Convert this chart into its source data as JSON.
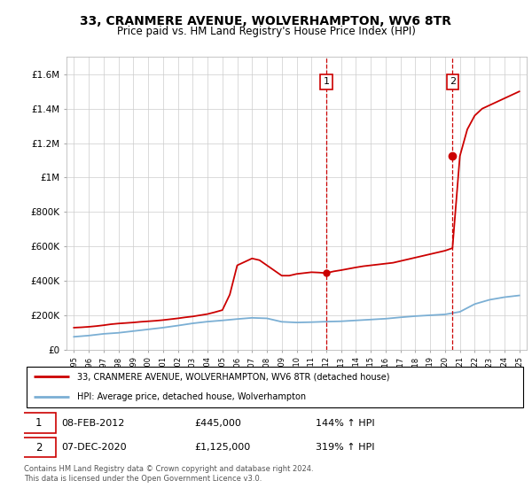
{
  "title": "33, CRANMERE AVENUE, WOLVERHAMPTON, WV6 8TR",
  "subtitle": "Price paid vs. HM Land Registry's House Price Index (HPI)",
  "red_label": "33, CRANMERE AVENUE, WOLVERHAMPTON, WV6 8TR (detached house)",
  "blue_label": "HPI: Average price, detached house, Wolverhampton",
  "sale1_date": "08-FEB-2012",
  "sale1_price": "£445,000",
  "sale1_hpi": "144% ↑ HPI",
  "sale2_date": "07-DEC-2020",
  "sale2_price": "£1,125,000",
  "sale2_hpi": "319% ↑ HPI",
  "footer": "Contains HM Land Registry data © Crown copyright and database right 2024.\nThis data is licensed under the Open Government Licence v3.0.",
  "ylim": [
    0,
    1700000
  ],
  "yticks": [
    0,
    200000,
    400000,
    600000,
    800000,
    1000000,
    1200000,
    1400000,
    1600000
  ],
  "ytick_labels": [
    "£0",
    "£200K",
    "£400K",
    "£600K",
    "£800K",
    "£1M",
    "£1.2M",
    "£1.4M",
    "£1.6M"
  ],
  "red_x": [
    1995.0,
    1995.5,
    1996.0,
    1996.5,
    1997.0,
    1997.5,
    1998.0,
    1998.5,
    1999.0,
    1999.5,
    2000.0,
    2000.5,
    2001.0,
    2001.5,
    2002.0,
    2002.5,
    2003.0,
    2003.5,
    2004.0,
    2004.5,
    2005.0,
    2005.5,
    2006.0,
    2006.5,
    2007.0,
    2007.5,
    2008.0,
    2008.5,
    2009.0,
    2009.5,
    2010.0,
    2010.5,
    2011.0,
    2011.5,
    2012.0,
    2012.5,
    2013.0,
    2013.5,
    2014.0,
    2014.5,
    2015.0,
    2015.5,
    2016.0,
    2016.5,
    2017.0,
    2017.5,
    2018.0,
    2018.5,
    2019.0,
    2019.5,
    2020.0,
    2020.5,
    2021.0,
    2021.5,
    2022.0,
    2022.5,
    2023.0,
    2023.5,
    2024.0,
    2024.5,
    2025.0
  ],
  "red_y": [
    128000,
    130000,
    133000,
    137000,
    142000,
    148000,
    152000,
    155000,
    158000,
    162000,
    165000,
    168000,
    172000,
    177000,
    182000,
    188000,
    193000,
    200000,
    207000,
    218000,
    230000,
    320000,
    490000,
    510000,
    530000,
    520000,
    490000,
    460000,
    430000,
    430000,
    440000,
    445000,
    450000,
    448000,
    445000,
    455000,
    462000,
    470000,
    478000,
    485000,
    490000,
    495000,
    500000,
    505000,
    515000,
    525000,
    535000,
    545000,
    555000,
    565000,
    575000,
    590000,
    1125000,
    1280000,
    1360000,
    1400000,
    1420000,
    1440000,
    1460000,
    1480000,
    1500000
  ],
  "blue_x": [
    1995.0,
    1996.0,
    1997.0,
    1998.0,
    1999.0,
    2000.0,
    2001.0,
    2002.0,
    2003.0,
    2004.0,
    2005.0,
    2006.0,
    2007.0,
    2008.0,
    2009.0,
    2010.0,
    2011.0,
    2012.0,
    2013.0,
    2014.0,
    2015.0,
    2016.0,
    2017.0,
    2018.0,
    2019.0,
    2020.0,
    2021.0,
    2022.0,
    2023.0,
    2024.0,
    2025.0
  ],
  "blue_y": [
    75000,
    82000,
    92000,
    98000,
    108000,
    118000,
    128000,
    140000,
    153000,
    163000,
    170000,
    178000,
    185000,
    182000,
    162000,
    158000,
    160000,
    163000,
    165000,
    170000,
    175000,
    180000,
    188000,
    195000,
    200000,
    205000,
    220000,
    265000,
    290000,
    305000,
    315000
  ],
  "sale1_year": 2012.0,
  "sale1_value": 445000,
  "sale2_year": 2020.5,
  "sale2_value": 1125000,
  "xlim_left": 1994.5,
  "xlim_right": 2025.5,
  "bg_color": "#ffffff",
  "red_color": "#cc0000",
  "blue_color": "#7bafd4",
  "grid_color": "#cccccc"
}
